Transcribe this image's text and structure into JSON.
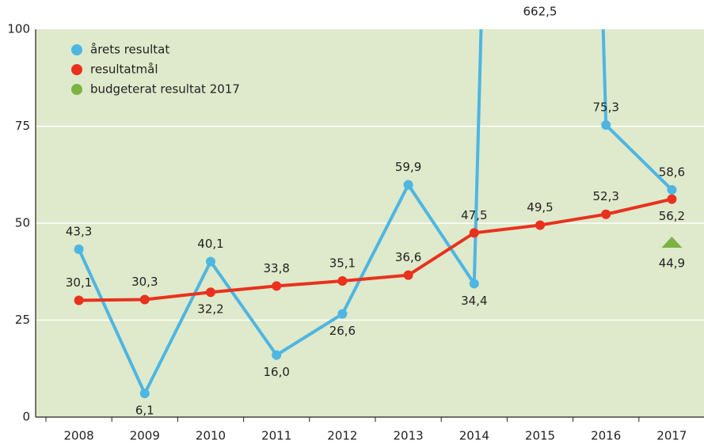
{
  "chart_data": {
    "type": "line",
    "categories": [
      "2008",
      "2009",
      "2010",
      "2011",
      "2012",
      "2013",
      "2014",
      "2015",
      "2016",
      "2017"
    ],
    "series": [
      {
        "name": "årets resultat",
        "color": "#4db6e2",
        "marker": "circle",
        "values": [
          43.3,
          6.1,
          40.1,
          16.0,
          26.6,
          59.9,
          34.4,
          662.5,
          75.3,
          58.6
        ],
        "value_labels": [
          "43,3",
          "6,1",
          "40,1",
          "16,0",
          "26,6",
          "59,9",
          "34,4",
          "662,5",
          "75,3",
          "58,6"
        ]
      },
      {
        "name": "resultatmål",
        "color": "#e8321e",
        "marker": "circle",
        "values": [
          30.1,
          30.3,
          32.2,
          33.8,
          35.1,
          36.6,
          47.5,
          49.5,
          52.3,
          56.2
        ],
        "value_labels": [
          "30,1",
          "30,3",
          "32,2",
          "33,8",
          "35,1",
          "36,6",
          "47,5",
          "49,5",
          "52,3",
          "56,2"
        ]
      },
      {
        "name": "budgeterat resultat 2017",
        "color": "#7cb342",
        "marker": "triangle",
        "values": [
          null,
          null,
          null,
          null,
          null,
          null,
          null,
          null,
          null,
          44.9
        ],
        "value_labels": [
          null,
          null,
          null,
          null,
          null,
          null,
          null,
          null,
          null,
          "44,9"
        ]
      }
    ],
    "ylim": [
      0,
      100
    ],
    "yticks": [
      0,
      25,
      50,
      75,
      100
    ],
    "grid": true,
    "legend": "upper left"
  }
}
